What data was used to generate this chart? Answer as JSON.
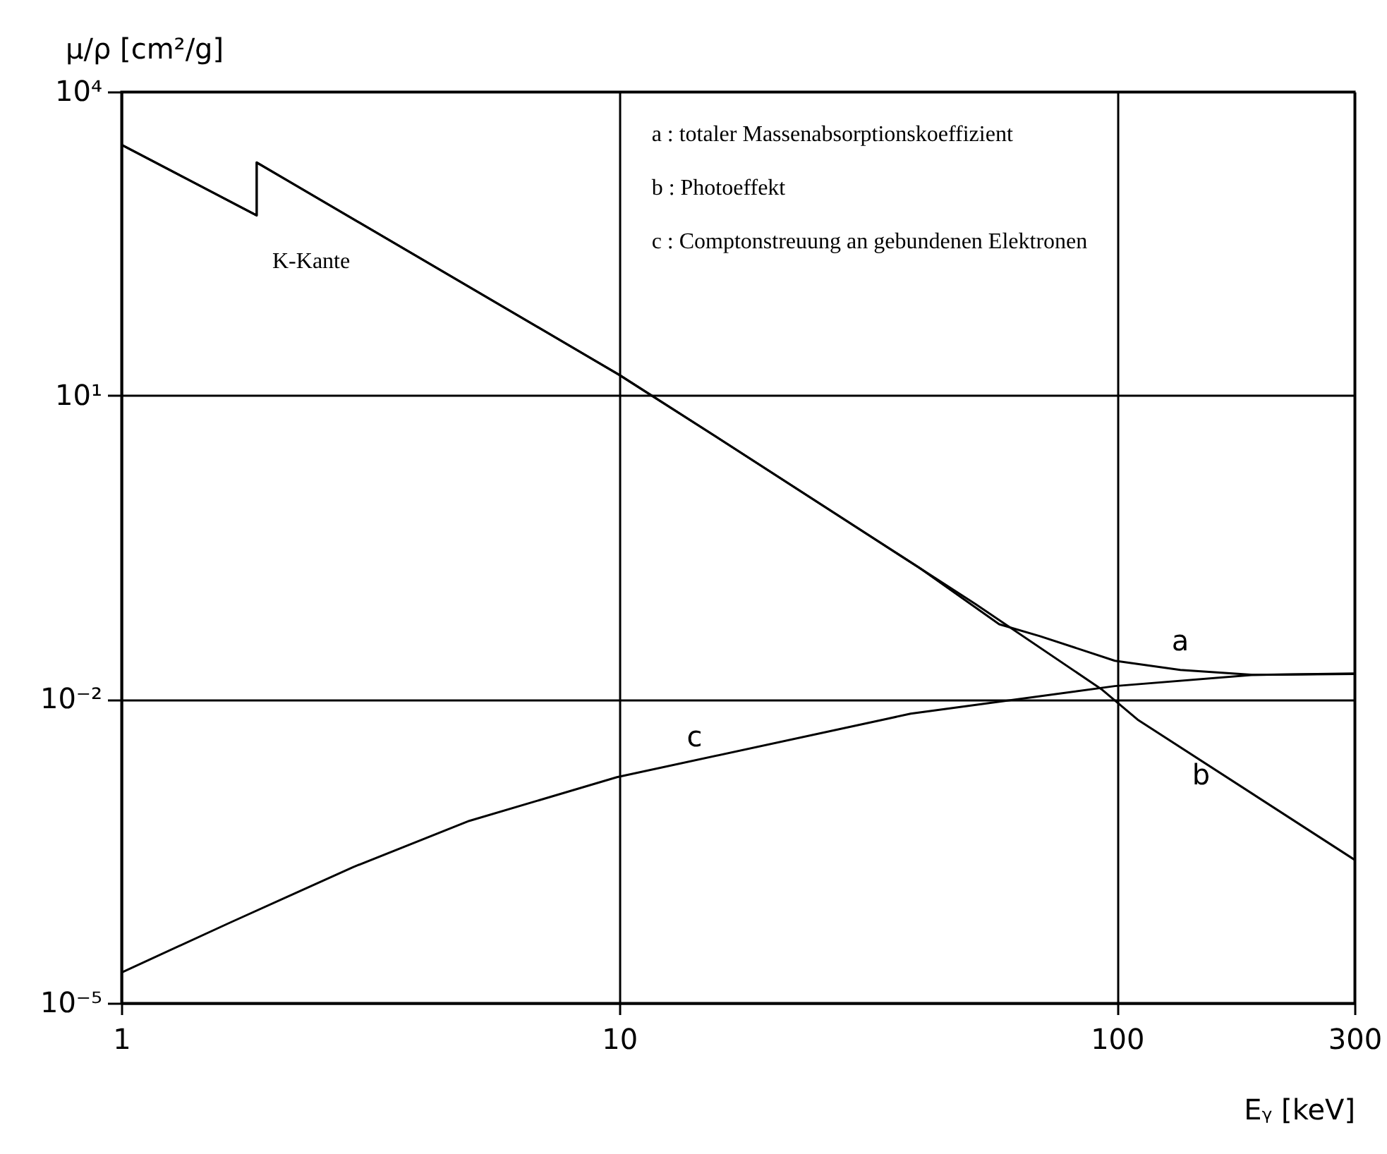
{
  "chart_data": {
    "type": "line",
    "xlabel": "Eᵧ [keV]",
    "ylabel": "μ/ρ [cm²/g]",
    "log": "xy",
    "grid": true,
    "line_style": "solid",
    "marker": "none",
    "xlim": [
      1,
      300
    ],
    "xticks": [
      1,
      10,
      100,
      300
    ],
    "ylim": [
      1e-05,
      10000
    ],
    "yticks": [
      {
        "value": 1e-05,
        "label": "10⁻⁵"
      },
      {
        "value": 0.01,
        "label": "10⁻²"
      },
      {
        "value": 10,
        "label": "10¹"
      },
      {
        "value": 10000,
        "label": "10⁴"
      }
    ],
    "series": [
      {
        "name": "a",
        "color": "#000000",
        "x": [
          1,
          1.87,
          1.87,
          10,
          14.4,
          40,
          58,
          70,
          99,
          134,
          188,
          300
        ],
        "values": [
          3000,
          600,
          2000,
          16,
          5.1,
          0.2,
          0.055,
          0.042,
          0.024,
          0.0195,
          0.0174,
          0.018
        ]
      },
      {
        "name": "b",
        "color": "#000000",
        "x": [
          1,
          1.87,
          1.87,
          10,
          14.4,
          52,
          93,
          110,
          300
        ],
        "values": [
          3000,
          600,
          2000,
          16,
          5.1,
          0.087,
          0.0126,
          0.0063,
          0.00026
        ]
      },
      {
        "name": "c",
        "color": "#000000",
        "x": [
          1,
          1.65,
          2.92,
          5,
          9.9,
          38.5,
          99,
          188,
          300
        ],
        "values": [
          2e-05,
          6.2e-05,
          0.00022,
          0.00063,
          0.0017,
          0.0072,
          0.0135,
          0.0174,
          0.0178
        ]
      }
    ],
    "annotations": [
      "K-Kante",
      "a : totaler Massenabsorptionskoeffizient",
      "b : Photoeffekt",
      "c : Comptonstreuung an gebundenen Elektronen"
    ]
  }
}
